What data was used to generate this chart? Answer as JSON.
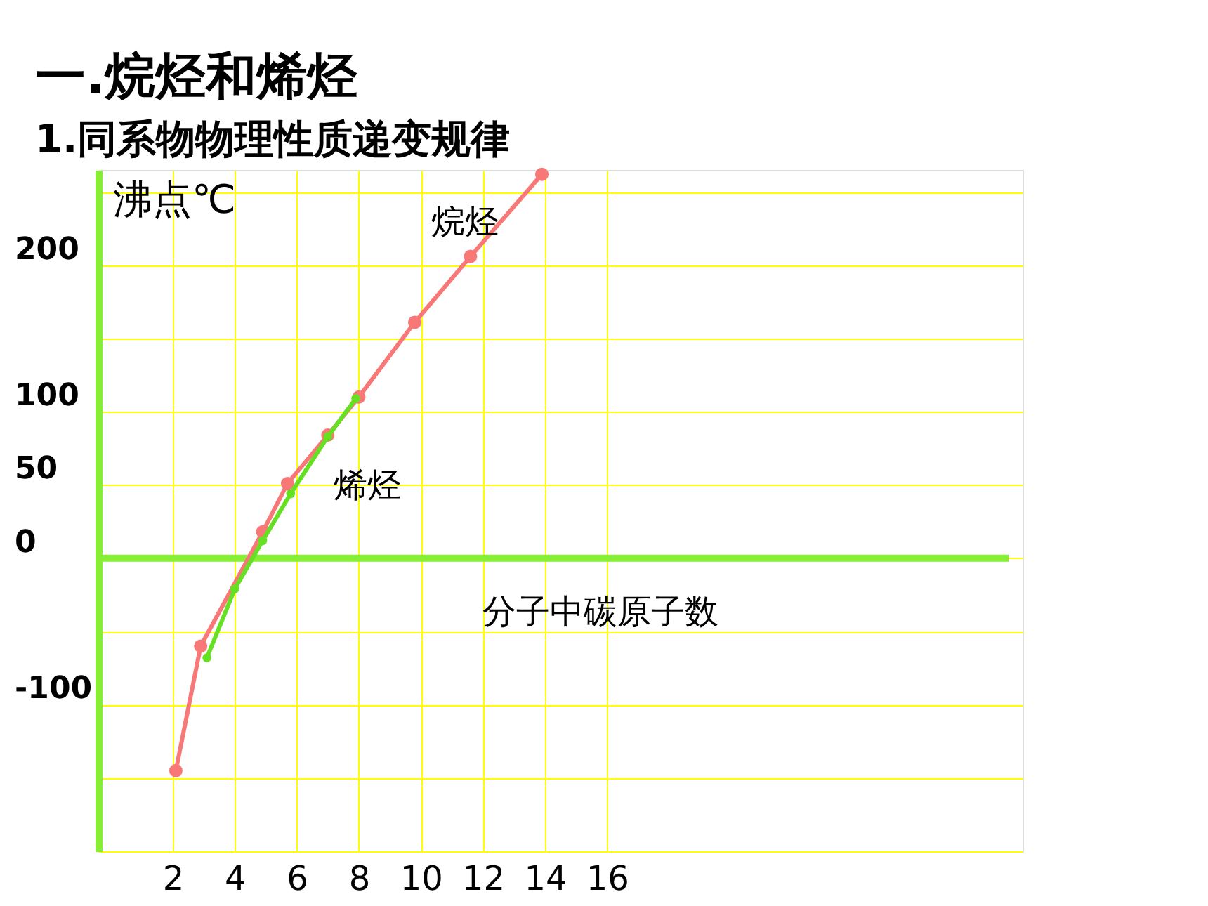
{
  "chart_data": {
    "type": "line",
    "title": "一.烷烃和烯烃",
    "subtitle": "1.同系物物理性质递变规律",
    "xlabel": "分子中碳原子数",
    "ylabel": "沸点℃",
    "xlim": [
      -0.4,
      29.4
    ],
    "ylim": [
      -200,
      265
    ],
    "xticks": [
      2,
      4,
      6,
      8,
      10,
      12,
      14,
      16
    ],
    "yticks": [
      {
        "value": -200,
        "label": null
      },
      {
        "value": -150,
        "label": null
      },
      -100,
      {
        "value": -50,
        "label": null
      },
      0,
      50,
      100,
      {
        "value": 150,
        "label": null
      },
      200,
      {
        "value": 250,
        "label": null
      }
    ],
    "grid": true,
    "marker": "circle",
    "line_style": "solid",
    "ref_lines": [
      {
        "axis": "y",
        "value": 0,
        "color": "#88ee33"
      }
    ],
    "series": [
      {
        "name": "烷烃",
        "color": "#f87878",
        "x": [
          2.1,
          2.9,
          4.9,
          5.7,
          7.0,
          8.0,
          9.8,
          11.6,
          13.9
        ],
        "values": [
          -145,
          -60,
          18,
          51,
          84,
          110,
          161,
          206,
          262
        ]
      },
      {
        "name": "烯烃",
        "color": "#66e022",
        "x": [
          3.1,
          4.0,
          4.9,
          5.8,
          7.0,
          7.9
        ],
        "values": [
          -68,
          -21,
          12,
          44,
          83,
          109
        ]
      }
    ]
  }
}
